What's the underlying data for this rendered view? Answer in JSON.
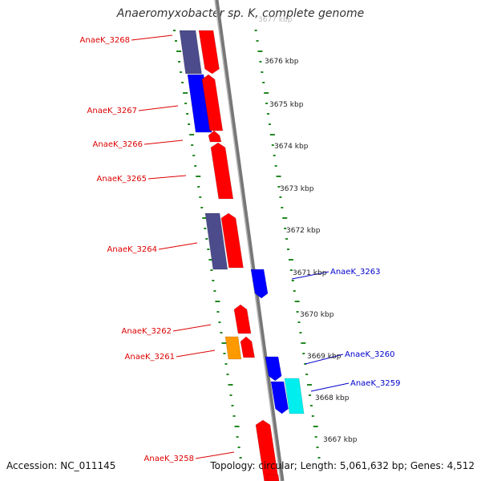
{
  "title": "Anaeromyxobacter sp. K, complete genome",
  "accession": "Accession: NC_011145",
  "summary": "Topology: circular; Length: 5,061,632 bp; Genes: 4,512",
  "colors": {
    "forward_label": "#dd0000",
    "reverse_label": "#0000cc",
    "leader": "#dd0000",
    "leader_rev": "#0000cc",
    "axis": "#888888",
    "tick": "#228822",
    "red": "#ff0000",
    "blue": "#0000ff",
    "slate": "#4c4c8c",
    "orange": "#ff9900",
    "cyan": "#00eeee"
  },
  "scale_labels": [
    "3677 kbp",
    "3676 kbp",
    "3675 kbp",
    "3674 kbp",
    "3673 kbp",
    "3672 kbp",
    "3671 kbp",
    "3670 kbp",
    "3669 kbp",
    "3668 kbp",
    "3667 kbp"
  ],
  "gene_labels": [
    {
      "text": "AnaeK_3268",
      "strand": "forward"
    },
    {
      "text": "AnaeK_3267",
      "strand": "forward"
    },
    {
      "text": "AnaeK_3266",
      "strand": "forward"
    },
    {
      "text": "AnaeK_3265",
      "strand": "forward"
    },
    {
      "text": "AnaeK_3264",
      "strand": "forward"
    },
    {
      "text": "AnaeK_3263",
      "strand": "reverse"
    },
    {
      "text": "AnaeK_3262",
      "strand": "forward"
    },
    {
      "text": "AnaeK_3261",
      "strand": "forward"
    },
    {
      "text": "AnaeK_3260",
      "strand": "reverse"
    },
    {
      "text": "AnaeK_3259",
      "strand": "reverse"
    },
    {
      "text": "AnaeK_3258",
      "strand": "forward"
    }
  ]
}
